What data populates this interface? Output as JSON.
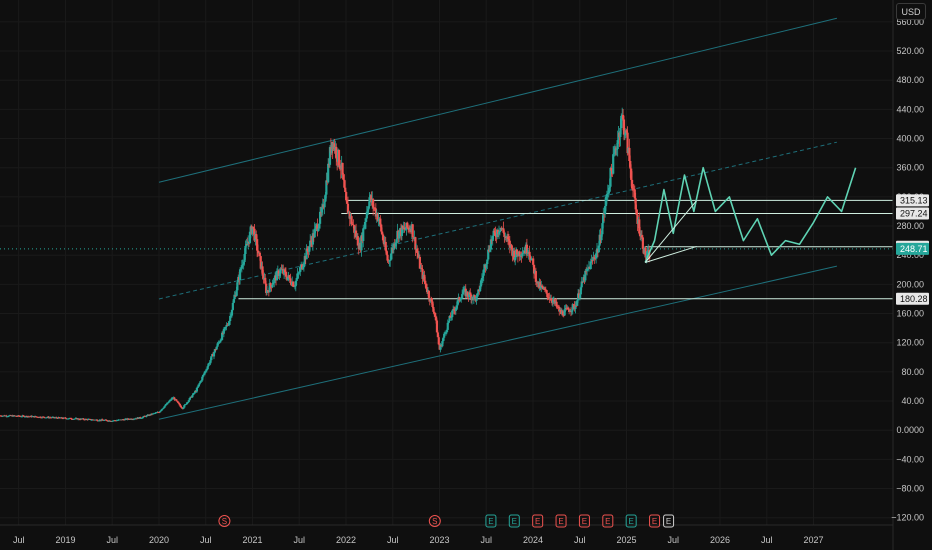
{
  "currency": "USD",
  "colors": {
    "background": "#0f0f0f",
    "up": "#26a69a",
    "down": "#ef5350",
    "channel": "#1e6f7a",
    "level": "#cfeee0",
    "projection": "#5fd3b4",
    "grid": "#1a1a1a"
  },
  "chart_data": {
    "type": "candlestick",
    "title": "",
    "ylim": [
      -130,
      590
    ],
    "y_ticks": [
      -120,
      -80,
      -40,
      0,
      40,
      80,
      120,
      160,
      200,
      240,
      280,
      320,
      360,
      400,
      440,
      480,
      520,
      560
    ],
    "y_tick_labels": [
      "−120.00",
      "−80.00",
      "−40.00",
      "0.0000",
      "40.00",
      "80.00",
      "120.00",
      "160.00",
      "200.00",
      "240.00",
      "280.00",
      "320.00",
      "360.00",
      "400.00",
      "440.00",
      "480.00",
      "520.00",
      "560.00"
    ],
    "xlim": [
      2018.3,
      2027.85
    ],
    "x_ticks": [
      {
        "label": "Jul",
        "t": 2018.5
      },
      {
        "label": "2019",
        "t": 2019.0
      },
      {
        "label": "Jul",
        "t": 2019.5
      },
      {
        "label": "2020",
        "t": 2020.0
      },
      {
        "label": "Jul",
        "t": 2020.5
      },
      {
        "label": "2021",
        "t": 2021.0
      },
      {
        "label": "Jul",
        "t": 2021.5
      },
      {
        "label": "2022",
        "t": 2022.0
      },
      {
        "label": "Jul",
        "t": 2022.5
      },
      {
        "label": "2023",
        "t": 2023.0
      },
      {
        "label": "Jul",
        "t": 2023.5
      },
      {
        "label": "2024",
        "t": 2024.0
      },
      {
        "label": "Jul",
        "t": 2024.5
      },
      {
        "label": "2025",
        "t": 2025.0
      },
      {
        "label": "Jul",
        "t": 2025.5
      },
      {
        "label": "2026",
        "t": 2026.0
      },
      {
        "label": "Jul",
        "t": 2026.5
      },
      {
        "label": "2027",
        "t": 2027.0
      }
    ],
    "price_path": [
      [
        2018.3,
        20
      ],
      [
        2018.6,
        19
      ],
      [
        2018.9,
        17
      ],
      [
        2019.2,
        15
      ],
      [
        2019.5,
        13
      ],
      [
        2019.8,
        17
      ],
      [
        2020.0,
        25
      ],
      [
        2020.15,
        45
      ],
      [
        2020.25,
        30
      ],
      [
        2020.4,
        55
      ],
      [
        2020.6,
        110
      ],
      [
        2020.75,
        150
      ],
      [
        2020.9,
        235
      ],
      [
        2021.0,
        280
      ],
      [
        2021.15,
        190
      ],
      [
        2021.3,
        220
      ],
      [
        2021.45,
        200
      ],
      [
        2021.6,
        250
      ],
      [
        2021.75,
        300
      ],
      [
        2021.85,
        400
      ],
      [
        2021.95,
        360
      ],
      [
        2022.0,
        310
      ],
      [
        2022.15,
        250
      ],
      [
        2022.25,
        320
      ],
      [
        2022.35,
        290
      ],
      [
        2022.45,
        230
      ],
      [
        2022.55,
        270
      ],
      [
        2022.7,
        280
      ],
      [
        2022.8,
        220
      ],
      [
        2022.95,
        160
      ],
      [
        2023.0,
        110
      ],
      [
        2023.1,
        150
      ],
      [
        2023.25,
        190
      ],
      [
        2023.4,
        180
      ],
      [
        2023.55,
        260
      ],
      [
        2023.65,
        280
      ],
      [
        2023.8,
        240
      ],
      [
        2023.95,
        250
      ],
      [
        2024.05,
        200
      ],
      [
        2024.2,
        180
      ],
      [
        2024.3,
        160
      ],
      [
        2024.45,
        170
      ],
      [
        2024.55,
        210
      ],
      [
        2024.7,
        250
      ],
      [
        2024.8,
        330
      ],
      [
        2024.95,
        430
      ],
      [
        2025.0,
        400
      ],
      [
        2025.1,
        300
      ],
      [
        2025.2,
        240
      ],
      [
        2025.25,
        240
      ]
    ],
    "horizontal_levels": [
      {
        "value": 315.13,
        "label": "315.13",
        "from": 2022.0
      },
      {
        "value": 297.24,
        "label": "297.24",
        "from": 2021.95
      },
      {
        "value": 251.59,
        "label": "251.59",
        "from": 2025.2
      },
      {
        "value": 180.28,
        "label": "180.28",
        "from": 2020.85
      }
    ],
    "current_price": {
      "value": 248.71,
      "label": "248.71"
    },
    "channel": {
      "upper": [
        [
          2020.0,
          340
        ],
        [
          2027.25,
          565
        ]
      ],
      "middle": [
        [
          2020.0,
          180
        ],
        [
          2027.25,
          395
        ]
      ],
      "lower": [
        [
          2020.0,
          15
        ],
        [
          2027.25,
          225
        ]
      ]
    },
    "projection_path": [
      [
        2025.2,
        230
      ],
      [
        2025.3,
        260
      ],
      [
        2025.4,
        330
      ],
      [
        2025.5,
        270
      ],
      [
        2025.62,
        350
      ],
      [
        2025.72,
        300
      ],
      [
        2025.82,
        360
      ],
      [
        2025.95,
        300
      ],
      [
        2026.1,
        320
      ],
      [
        2026.25,
        260
      ],
      [
        2026.4,
        290
      ],
      [
        2026.55,
        240
      ],
      [
        2026.7,
        260
      ],
      [
        2026.85,
        255
      ],
      [
        2027.0,
        285
      ],
      [
        2027.15,
        320
      ],
      [
        2027.3,
        300
      ],
      [
        2027.45,
        360
      ]
    ],
    "event_markers": [
      {
        "t": 2020.7,
        "symbol": "S",
        "color": "#ef5350",
        "round": true
      },
      {
        "t": 2022.95,
        "symbol": "S",
        "color": "#ef5350",
        "round": true
      },
      {
        "t": 2023.55,
        "symbol": "E",
        "color": "#26a69a",
        "round": false
      },
      {
        "t": 2023.8,
        "symbol": "E",
        "color": "#26a69a",
        "round": false
      },
      {
        "t": 2024.05,
        "symbol": "E",
        "color": "#ef5350",
        "round": false
      },
      {
        "t": 2024.3,
        "symbol": "E",
        "color": "#ef5350",
        "round": false
      },
      {
        "t": 2024.55,
        "symbol": "E",
        "color": "#ef5350",
        "round": false
      },
      {
        "t": 2024.8,
        "symbol": "E",
        "color": "#ef5350",
        "round": false
      },
      {
        "t": 2025.05,
        "symbol": "E",
        "color": "#26a69a",
        "round": false
      },
      {
        "t": 2025.3,
        "symbol": "E",
        "color": "#ef5350",
        "round": false
      },
      {
        "t": 2025.45,
        "symbol": "E",
        "color": "#d0d0d0",
        "round": false
      }
    ]
  }
}
